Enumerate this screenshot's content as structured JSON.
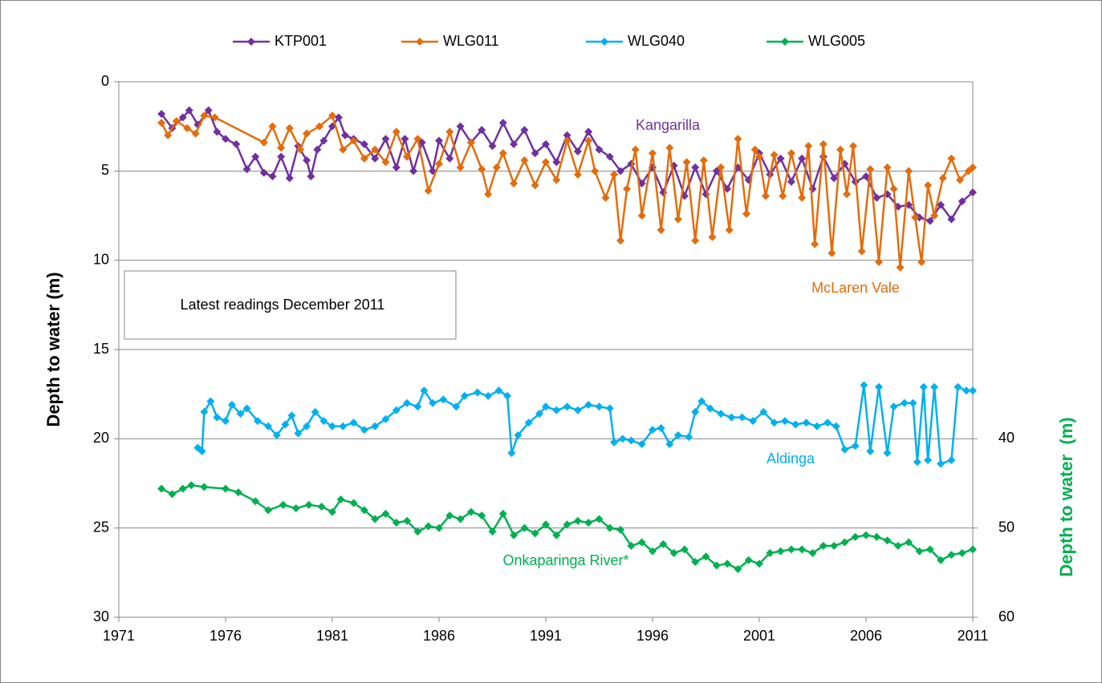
{
  "chart_data": {
    "type": "line",
    "xlim": [
      1971,
      2011
    ],
    "xticks": [
      1971,
      1976,
      1981,
      1986,
      1991,
      1996,
      2001,
      2006,
      2011
    ],
    "ylim": [
      0,
      30
    ],
    "yticks": [
      0,
      5,
      10,
      15,
      20,
      25,
      30
    ],
    "y_inverted": true,
    "y2lim": [
      0,
      60
    ],
    "y2ticks": [
      40,
      50,
      60
    ],
    "ylabel": "Depth to water (m)",
    "y2label": "Depth to water  (m)",
    "grid": true,
    "legend": "top",
    "series": [
      {
        "name": "KTP001",
        "color": "#7030a0",
        "x": [
          1973,
          1973.5,
          1974,
          1974.3,
          1974.7,
          1975.2,
          1975.6,
          1976,
          1976.5,
          1977,
          1977.4,
          1977.8,
          1978.2,
          1978.6,
          1979,
          1979.4,
          1979.8,
          1980,
          1980.3,
          1980.6,
          1981,
          1981.3,
          1981.6,
          1982,
          1982.5,
          1983,
          1983.5,
          1984,
          1984.4,
          1984.8,
          1985.2,
          1985.7,
          1986,
          1986.5,
          1987,
          1987.5,
          1988,
          1988.5,
          1989,
          1989.5,
          1990,
          1990.5,
          1991,
          1991.5,
          1992,
          1992.5,
          1993,
          1993.5,
          1994,
          1994.5,
          1995,
          1995.5,
          1996,
          1996.5,
          1997,
          1997.5,
          1998,
          1998.5,
          1999,
          1999.5,
          2000,
          2000.5,
          2001,
          2001.5,
          2002,
          2002.5,
          2003,
          2003.5,
          2004,
          2004.5,
          2005,
          2005.5,
          2006,
          2006.5,
          2007,
          2007.5,
          2008,
          2008.5,
          2009,
          2009.5,
          2010,
          2010.5,
          2011
        ],
        "values": [
          1.8,
          2.6,
          2.0,
          1.6,
          2.4,
          1.6,
          2.8,
          3.2,
          3.5,
          4.9,
          4.2,
          5.1,
          5.3,
          4.2,
          5.4,
          3.6,
          4.4,
          5.3,
          3.8,
          3.3,
          2.5,
          2.0,
          3.0,
          3.2,
          3.5,
          4.3,
          3.2,
          4.8,
          3.2,
          5.0,
          3.4,
          5.0,
          3.3,
          4.3,
          2.5,
          3.4,
          2.7,
          3.6,
          2.3,
          3.5,
          2.7,
          4.0,
          3.5,
          4.5,
          3.0,
          3.9,
          2.8,
          3.8,
          4.2,
          5.0,
          4.6,
          5.7,
          4.8,
          6.2,
          4.7,
          6.4,
          4.8,
          6.3,
          5.0,
          6.0,
          4.8,
          5.5,
          4.0,
          5.2,
          4.3,
          5.6,
          4.3,
          6.0,
          4.2,
          5.4,
          4.6,
          5.6,
          5.3,
          6.5,
          6.3,
          7.0,
          6.9,
          7.6,
          7.8,
          6.9,
          7.7,
          6.7,
          6.2
        ]
      },
      {
        "name": "WLG011",
        "color": "#e46c0a",
        "x": [
          1973,
          1973.3,
          1973.7,
          1974.2,
          1974.6,
          1975,
          1975.5,
          1977.8,
          1978.2,
          1978.6,
          1979,
          1979.5,
          1979.8,
          1980.4,
          1981,
          1981.5,
          1982,
          1982.5,
          1983,
          1983.5,
          1984,
          1984.5,
          1985,
          1985.5,
          1986,
          1986.5,
          1987,
          1987.5,
          1988,
          1988.3,
          1988.7,
          1989,
          1989.5,
          1990,
          1990.5,
          1991,
          1991.5,
          1992,
          1992.5,
          1993,
          1993.3,
          1993.8,
          1994.2,
          1994.5,
          1994.8,
          1995.2,
          1995.5,
          1996,
          1996.4,
          1996.8,
          1997.2,
          1997.6,
          1998,
          1998.4,
          1998.8,
          1999.2,
          1999.6,
          2000,
          2000.4,
          2000.8,
          2001,
          2001.3,
          2001.7,
          2002.1,
          2002.5,
          2003,
          2003.3,
          2003.6,
          2004,
          2004.4,
          2004.8,
          2005.1,
          2005.4,
          2005.8,
          2006.2,
          2006.6,
          2007,
          2007.3,
          2007.6,
          2008,
          2008.3,
          2008.6,
          2008.9,
          2009.2,
          2009.6,
          2010,
          2010.4,
          2010.8,
          2011
        ],
        "values": [
          2.3,
          3.0,
          2.2,
          2.6,
          2.9,
          1.9,
          2.0,
          3.4,
          2.5,
          3.7,
          2.6,
          3.8,
          2.9,
          2.5,
          1.9,
          3.8,
          3.3,
          4.3,
          3.8,
          4.5,
          2.8,
          4.2,
          3.2,
          6.1,
          4.6,
          2.8,
          4.8,
          3.4,
          4.9,
          6.3,
          4.8,
          4.0,
          5.7,
          4.4,
          5.8,
          4.5,
          5.5,
          3.3,
          5.2,
          3.3,
          5.0,
          6.5,
          5.2,
          8.9,
          6.0,
          3.8,
          7.5,
          4.0,
          8.3,
          3.7,
          7.7,
          4.5,
          8.9,
          4.4,
          8.7,
          4.8,
          8.3,
          3.2,
          7.4,
          3.8,
          4.2,
          6.4,
          4.1,
          6.4,
          4.0,
          6.5,
          3.6,
          9.1,
          3.5,
          9.6,
          3.8,
          6.3,
          3.6,
          9.5,
          4.9,
          10.1,
          4.8,
          6.0,
          10.4,
          5.0,
          7.6,
          10.1,
          5.8,
          7.5,
          5.4,
          4.3,
          5.5,
          5.0,
          4.8
        ]
      },
      {
        "name": "WLG040",
        "color": "#00b0f0",
        "x": [
          1974.7,
          1974.9,
          1975,
          1975.3,
          1975.6,
          1976,
          1976.3,
          1976.7,
          1977,
          1977.5,
          1978,
          1978.4,
          1978.8,
          1979.1,
          1979.4,
          1979.8,
          1980.2,
          1980.6,
          1981,
          1981.5,
          1982,
          1982.5,
          1983,
          1983.5,
          1984,
          1984.5,
          1985,
          1985.3,
          1985.7,
          1986.2,
          1986.8,
          1987.2,
          1987.8,
          1988.3,
          1988.8,
          1989.2,
          1989.4,
          1989.7,
          1990.2,
          1990.7,
          1991,
          1991.5,
          1992,
          1992.5,
          1993,
          1993.5,
          1994,
          1994.2,
          1994.6,
          1995,
          1995.5,
          1996,
          1996.4,
          1996.8,
          1997.2,
          1997.7,
          1998,
          1998.3,
          1998.7,
          1999.2,
          1999.7,
          2000.2,
          2000.7,
          2001.2,
          2001.7,
          2002.2,
          2002.7,
          2003.2,
          2003.7,
          2004.2,
          2004.6,
          2005,
          2005.5,
          2005.9,
          2006.2,
          2006.6,
          2007,
          2007.3,
          2007.8,
          2008.2,
          2008.4,
          2008.7,
          2008.9,
          2009.2,
          2009.5,
          2010,
          2010.3,
          2010.7,
          2011
        ],
        "values": [
          20.5,
          20.7,
          18.5,
          17.9,
          18.8,
          19.0,
          18.1,
          18.6,
          18.3,
          19.0,
          19.3,
          19.8,
          19.2,
          18.7,
          19.7,
          19.3,
          18.5,
          19.0,
          19.3,
          19.3,
          19.1,
          19.5,
          19.3,
          18.9,
          18.4,
          18.0,
          18.2,
          17.3,
          18.0,
          17.8,
          18.2,
          17.6,
          17.4,
          17.6,
          17.3,
          17.6,
          20.8,
          19.8,
          19.1,
          18.6,
          18.2,
          18.4,
          18.2,
          18.4,
          18.1,
          18.2,
          18.3,
          20.2,
          20.0,
          20.1,
          20.3,
          19.5,
          19.4,
          20.3,
          19.8,
          19.9,
          18.5,
          17.9,
          18.3,
          18.6,
          18.8,
          18.8,
          19.0,
          18.5,
          19.1,
          19.0,
          19.2,
          19.1,
          19.3,
          19.1,
          19.3,
          20.6,
          20.4,
          17.0,
          20.7,
          17.1,
          20.8,
          18.2,
          18.0,
          18.0,
          21.3,
          17.1,
          21.2,
          17.1,
          21.4,
          21.2,
          17.1,
          17.3,
          17.3
        ]
      },
      {
        "name": "WLG005",
        "color": "#00b050",
        "axis": "y2",
        "x": [
          1973,
          1973.5,
          1974,
          1974.4,
          1975,
          1976,
          1976.6,
          1977.4,
          1978,
          1978.7,
          1979.3,
          1979.9,
          1980.5,
          1981,
          1981.4,
          1982,
          1982.5,
          1983,
          1983.5,
          1984,
          1984.5,
          1985,
          1985.5,
          1986,
          1986.5,
          1987,
          1987.5,
          1988,
          1988.5,
          1989,
          1989.5,
          1990,
          1990.5,
          1991,
          1991.5,
          1992,
          1992.5,
          1993,
          1993.5,
          1994,
          1994.5,
          1995,
          1995.5,
          1996,
          1996.5,
          1997,
          1997.5,
          1998,
          1998.5,
          1999,
          1999.5,
          2000,
          2000.5,
          2001,
          2001.5,
          2002,
          2002.5,
          2003,
          2003.5,
          2004,
          2004.5,
          2005,
          2005.5,
          2006,
          2006.5,
          2007,
          2007.5,
          2008,
          2008.5,
          2009,
          2009.5,
          2010,
          2010.5,
          2011
        ],
        "values": [
          45.6,
          46.2,
          45.6,
          45.2,
          45.4,
          45.6,
          46,
          47,
          48,
          47.4,
          47.8,
          47.4,
          47.6,
          48.2,
          46.8,
          47.2,
          48,
          49,
          48.4,
          49.4,
          49.2,
          50.4,
          49.8,
          50,
          48.6,
          49,
          48.2,
          48.6,
          50.4,
          48.4,
          50.8,
          50,
          50.6,
          49.6,
          50.8,
          49.6,
          49.2,
          49.4,
          49,
          50,
          50.2,
          52,
          51.6,
          52.6,
          51.8,
          52.8,
          52.4,
          53.8,
          53.2,
          54.2,
          54,
          54.6,
          53.6,
          54,
          52.8,
          52.6,
          52.4,
          52.4,
          52.8,
          52,
          52,
          51.6,
          51,
          50.8,
          51,
          51.4,
          52,
          51.6,
          52.6,
          52.4,
          53.6,
          53,
          52.8,
          52.4
        ]
      }
    ],
    "annotations": [
      {
        "text": "Kangarilla",
        "color": "#7030a0"
      },
      {
        "text": "McLaren Vale",
        "color": "#e46c0a"
      },
      {
        "text": "Aldinga",
        "color": "#00b0f0"
      },
      {
        "text": "Onkaparinga River*",
        "color": "#00b050"
      },
      {
        "text": "Latest readings December 2011",
        "color": "#000000"
      }
    ]
  }
}
